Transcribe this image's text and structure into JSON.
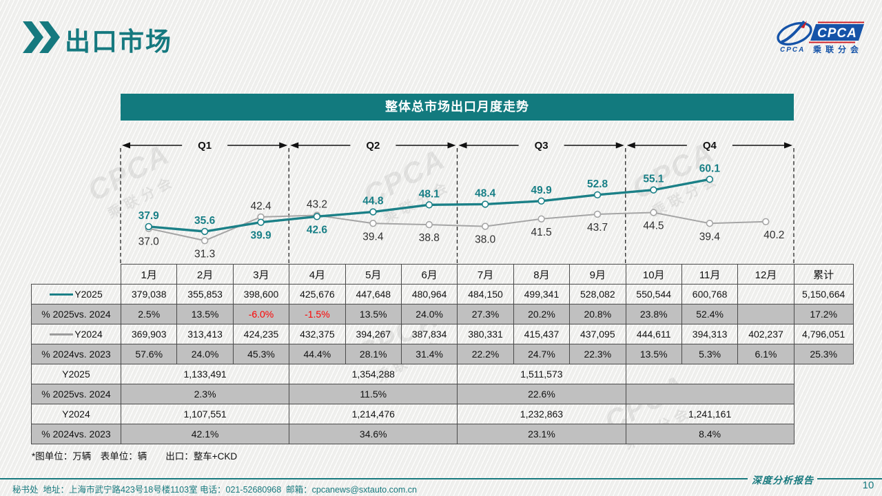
{
  "page": {
    "title": "出口市场",
    "page_number": "10",
    "report_label": "深度分析报告",
    "footer_contact": "秘书处  地址：上海市武宁路423号18号楼1103室 电话：021-52680968  邮箱：cpcanews@sxtauto.com.cn",
    "watermark": {
      "logo": "CPCA",
      "sub": "乘联分会"
    },
    "accent_color": "#127a7e"
  },
  "logo": {
    "main": "CPCA",
    "sub": "乘联分会",
    "small": "CPCA",
    "blue": "#1553a8",
    "red": "#cc2229"
  },
  "chart_data": {
    "type": "line",
    "title": "整体总市场出口月度走势",
    "categories": [
      "1月",
      "2月",
      "3月",
      "4月",
      "5月",
      "6月",
      "7月",
      "8月",
      "9月",
      "10月",
      "11月",
      "12月"
    ],
    "quarters": [
      "Q1",
      "Q2",
      "Q3",
      "Q4"
    ],
    "unit_note": "*图单位：万辆　表单位：辆　　出口：整车+CKD",
    "ylim": [
      25,
      65
    ],
    "series": [
      {
        "name": "Y2024",
        "color": "#a5a5a5",
        "label_color": "#2f2f2f",
        "label_bold": false,
        "width": 2,
        "values": [
          37.0,
          31.3,
          42.4,
          43.2,
          39.4,
          38.8,
          38.0,
          41.5,
          43.7,
          44.5,
          39.4,
          40.2
        ],
        "label_pos": [
          "below",
          "below",
          "above",
          "above",
          "below",
          "below",
          "below",
          "below",
          "below",
          "below",
          "below",
          "below"
        ],
        "label_dx": [
          0,
          0,
          0,
          0,
          0,
          0,
          0,
          0,
          0,
          0,
          0,
          12
        ]
      },
      {
        "name": "Y2025",
        "color": "#1b8087",
        "label_color": "#187f86",
        "label_bold": true,
        "width": 3.4,
        "values": [
          37.9,
          35.6,
          39.9,
          42.6,
          44.8,
          48.1,
          48.4,
          49.9,
          52.8,
          55.1,
          60.1
        ],
        "label_pos": [
          "above",
          "above",
          "below",
          "below",
          "above",
          "above",
          "above",
          "above",
          "above",
          "above",
          "above"
        ],
        "label_dx": [
          0,
          0,
          0,
          0,
          0,
          0,
          0,
          0,
          0,
          0,
          0
        ]
      }
    ]
  },
  "table": {
    "month_headers": [
      "1月",
      "2月",
      "3月",
      "4月",
      "5月",
      "6月",
      "7月",
      "8月",
      "9月",
      "10月",
      "11月",
      "12月"
    ],
    "total_header": "累计",
    "monthly_rows": [
      {
        "label": "Y2025",
        "legend": "#1b8087",
        "shade": "light",
        "values": [
          "379,038",
          "355,853",
          "398,600",
          "425,676",
          "447,648",
          "480,964",
          "484,150",
          "499,341",
          "528,082",
          "550,544",
          "600,768",
          "",
          "5,150,664"
        ]
      },
      {
        "label": "% 2025vs. 2024",
        "shade": "gray",
        "red": [
          2,
          3
        ],
        "values": [
          "2.5%",
          "13.5%",
          "-6.0%",
          "-1.5%",
          "13.5%",
          "24.0%",
          "27.3%",
          "20.2%",
          "20.8%",
          "23.8%",
          "52.4%",
          "",
          "17.2%"
        ]
      },
      {
        "label": "Y2024",
        "legend": "#9b9b9b",
        "shade": "light",
        "values": [
          "369,903",
          "313,413",
          "424,235",
          "432,375",
          "394,267",
          "387,834",
          "380,331",
          "415,437",
          "437,095",
          "444,611",
          "394,313",
          "402,237",
          "4,796,051"
        ]
      },
      {
        "label": "% 2024vs. 2023",
        "shade": "gray",
        "values": [
          "57.6%",
          "24.0%",
          "45.3%",
          "44.4%",
          "28.1%",
          "31.4%",
          "22.2%",
          "24.7%",
          "22.3%",
          "13.5%",
          "5.3%",
          "6.1%",
          "25.3%"
        ]
      }
    ],
    "quarterly_rows": [
      {
        "label": "Y2025",
        "shade": "light",
        "values": [
          "1,133,491",
          "1,354,288",
          "1,511,573",
          ""
        ]
      },
      {
        "label": "% 2025vs. 2024",
        "shade": "gray",
        "values": [
          "2.3%",
          "11.5%",
          "22.6%",
          ""
        ]
      },
      {
        "label": "Y2024",
        "shade": "light",
        "values": [
          "1,107,551",
          "1,214,476",
          "1,232,863",
          "1,241,161"
        ]
      },
      {
        "label": "% 2024vs. 2023",
        "shade": "gray",
        "values": [
          "42.1%",
          "34.6%",
          "23.1%",
          "8.4%"
        ]
      }
    ]
  }
}
